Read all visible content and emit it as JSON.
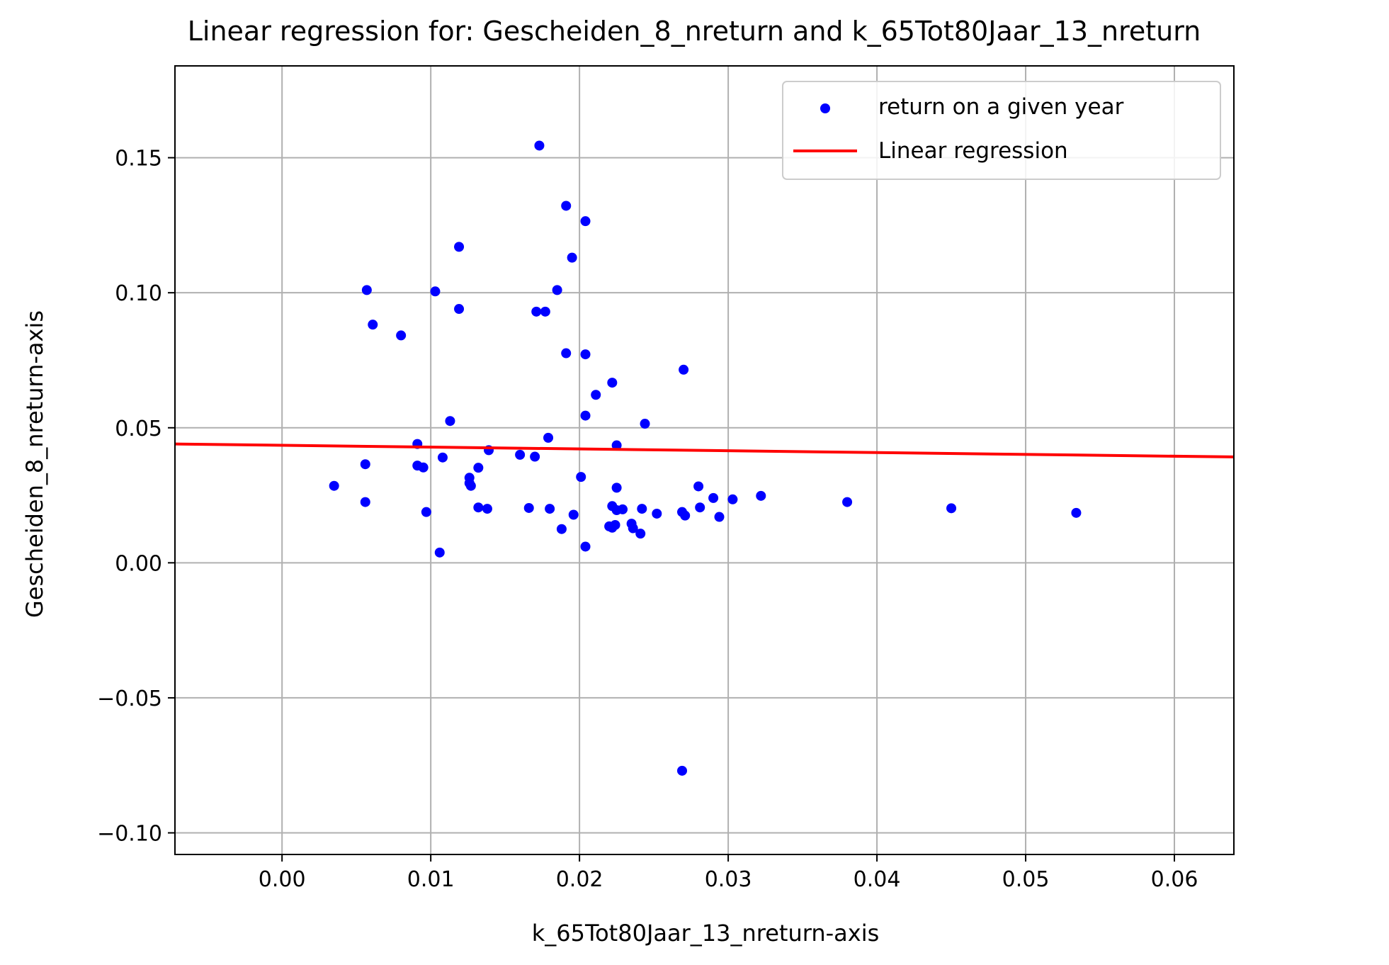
{
  "chart_data": {
    "type": "scatter",
    "title": "Linear regression for: Gescheiden_8_nreturn and k_65Tot80Jaar_13_nreturn",
    "xlabel": "k_65Tot80Jaar_13_nreturn-axis",
    "ylabel": "Gescheiden_8_nreturn-axis",
    "xlim": [
      -0.0072,
      0.064
    ],
    "ylim": [
      -0.108,
      0.184
    ],
    "xticks": [
      0.0,
      0.01,
      0.02,
      0.03,
      0.04,
      0.05,
      0.06
    ],
    "xtick_labels": [
      "0.00",
      "0.01",
      "0.02",
      "0.03",
      "0.04",
      "0.05",
      "0.06"
    ],
    "yticks": [
      -0.1,
      -0.05,
      0.0,
      0.05,
      0.1,
      0.15
    ],
    "ytick_labels": [
      "−0.10",
      "−0.05",
      "0.00",
      "0.05",
      "0.10",
      "0.15"
    ],
    "grid": true,
    "legend_position": "top-right",
    "series": [
      {
        "name": "return on a given year",
        "kind": "scatter",
        "color": "#0000ff",
        "points": [
          [
            0.0035,
            0.0285
          ],
          [
            0.0056,
            0.0365
          ],
          [
            0.0056,
            0.0225
          ],
          [
            0.0057,
            0.101
          ],
          [
            0.0061,
            0.0882
          ],
          [
            0.008,
            0.0842
          ],
          [
            0.0091,
            0.044
          ],
          [
            0.0091,
            0.036
          ],
          [
            0.0095,
            0.0353
          ],
          [
            0.0097,
            0.0188
          ],
          [
            0.0103,
            0.1005
          ],
          [
            0.0106,
            0.0038
          ],
          [
            0.0108,
            0.039
          ],
          [
            0.0113,
            0.0525
          ],
          [
            0.0119,
            0.117
          ],
          [
            0.0119,
            0.094
          ],
          [
            0.0126,
            0.0315
          ],
          [
            0.0126,
            0.0295
          ],
          [
            0.0127,
            0.0285
          ],
          [
            0.0132,
            0.0352
          ],
          [
            0.0132,
            0.0205
          ],
          [
            0.0138,
            0.02
          ],
          [
            0.0139,
            0.0417
          ],
          [
            0.016,
            0.04
          ],
          [
            0.0166,
            0.0203
          ],
          [
            0.017,
            0.0393
          ],
          [
            0.0171,
            0.093
          ],
          [
            0.0173,
            0.1545
          ],
          [
            0.0177,
            0.093
          ],
          [
            0.0179,
            0.0463
          ],
          [
            0.018,
            0.02
          ],
          [
            0.0185,
            0.101
          ],
          [
            0.0188,
            0.0125
          ],
          [
            0.0191,
            0.1322
          ],
          [
            0.0191,
            0.0776
          ],
          [
            0.0195,
            0.113
          ],
          [
            0.0196,
            0.0178
          ],
          [
            0.0201,
            0.0318
          ],
          [
            0.0204,
            0.1265
          ],
          [
            0.0204,
            0.0545
          ],
          [
            0.0204,
            0.0772
          ],
          [
            0.0204,
            0.006
          ],
          [
            0.0211,
            0.0622
          ],
          [
            0.022,
            0.0135
          ],
          [
            0.0222,
            0.0667
          ],
          [
            0.0222,
            0.021
          ],
          [
            0.0222,
            0.013
          ],
          [
            0.0224,
            0.014
          ],
          [
            0.0225,
            0.0435
          ],
          [
            0.0225,
            0.0278
          ],
          [
            0.0225,
            0.0195
          ],
          [
            0.0229,
            0.0198
          ],
          [
            0.0235,
            0.0145
          ],
          [
            0.0236,
            0.0128
          ],
          [
            0.0241,
            0.0108
          ],
          [
            0.0242,
            0.02
          ],
          [
            0.0244,
            0.0515
          ],
          [
            0.0252,
            0.0182
          ],
          [
            0.0269,
            0.0188
          ],
          [
            0.0269,
            -0.077
          ],
          [
            0.027,
            0.0715
          ],
          [
            0.0271,
            0.0175
          ],
          [
            0.028,
            0.0283
          ],
          [
            0.0281,
            0.0205
          ],
          [
            0.029,
            0.024
          ],
          [
            0.0294,
            0.017
          ],
          [
            0.0303,
            0.0235
          ],
          [
            0.0322,
            0.0248
          ],
          [
            0.038,
            0.0225
          ],
          [
            0.045,
            0.0202
          ],
          [
            0.0534,
            0.0185
          ]
        ]
      },
      {
        "name": "Linear regression",
        "kind": "line",
        "color": "#ff0000",
        "points": [
          [
            -0.0072,
            0.044
          ],
          [
            0.064,
            0.0392
          ]
        ]
      }
    ]
  }
}
